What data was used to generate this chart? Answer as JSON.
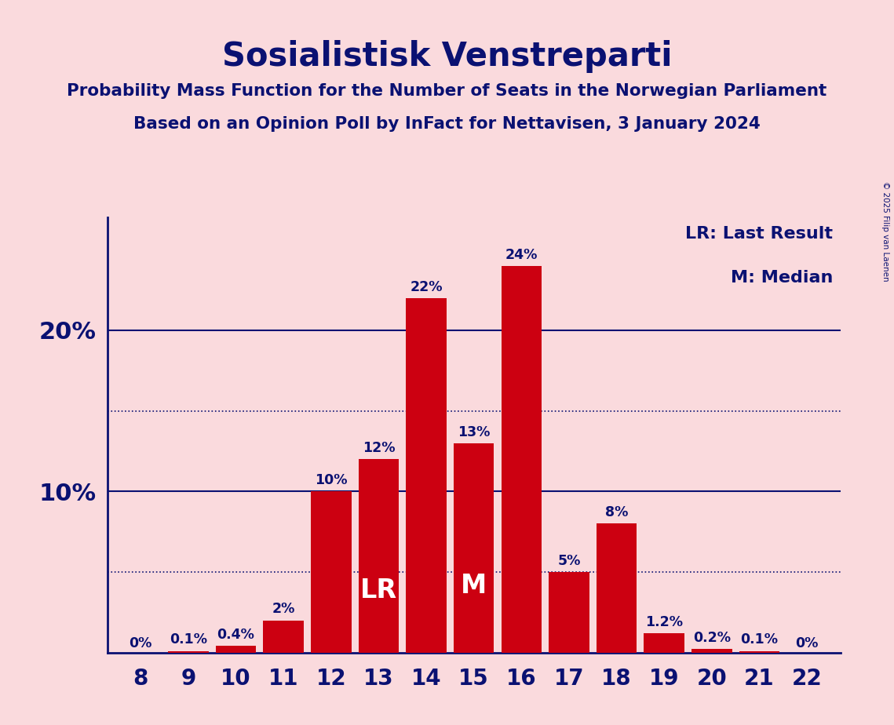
{
  "seats": [
    8,
    9,
    10,
    11,
    12,
    13,
    14,
    15,
    16,
    17,
    18,
    19,
    20,
    21,
    22
  ],
  "probabilities": [
    0.0,
    0.1,
    0.4,
    2.0,
    10.0,
    12.0,
    22.0,
    13.0,
    24.0,
    5.0,
    8.0,
    1.2,
    0.2,
    0.1,
    0.0
  ],
  "bar_labels": [
    "0%",
    "0.1%",
    "0.4%",
    "2%",
    "10%",
    "12%",
    "22%",
    "13%",
    "24%",
    "5%",
    "8%",
    "1.2%",
    "0.2%",
    "0.1%",
    "0%"
  ],
  "last_result_seat": 13,
  "median_seat": 15,
  "bar_color": "#CC0011",
  "background_color": "#FADADD",
  "text_color": "#0A1172",
  "title": "Sosialistisk Venstreparti",
  "subtitle1": "Probability Mass Function for the Number of Seats in the Norwegian Parliament",
  "subtitle2": "Based on an Opinion Poll by InFact for Nettavisen, 3 January 2024",
  "copyright": "© 2025 Filip van Laenen",
  "ytick_values": [
    10,
    20
  ],
  "ytick_labels": [
    "10%",
    "20%"
  ],
  "dotted_lines": [
    5,
    15
  ],
  "legend_lr": "LR: Last Result",
  "legend_m": "M: Median",
  "label_inside_lr": "LR",
  "label_inside_m": "M",
  "ylim": [
    0,
    27
  ],
  "xlim": [
    7.3,
    22.7
  ]
}
